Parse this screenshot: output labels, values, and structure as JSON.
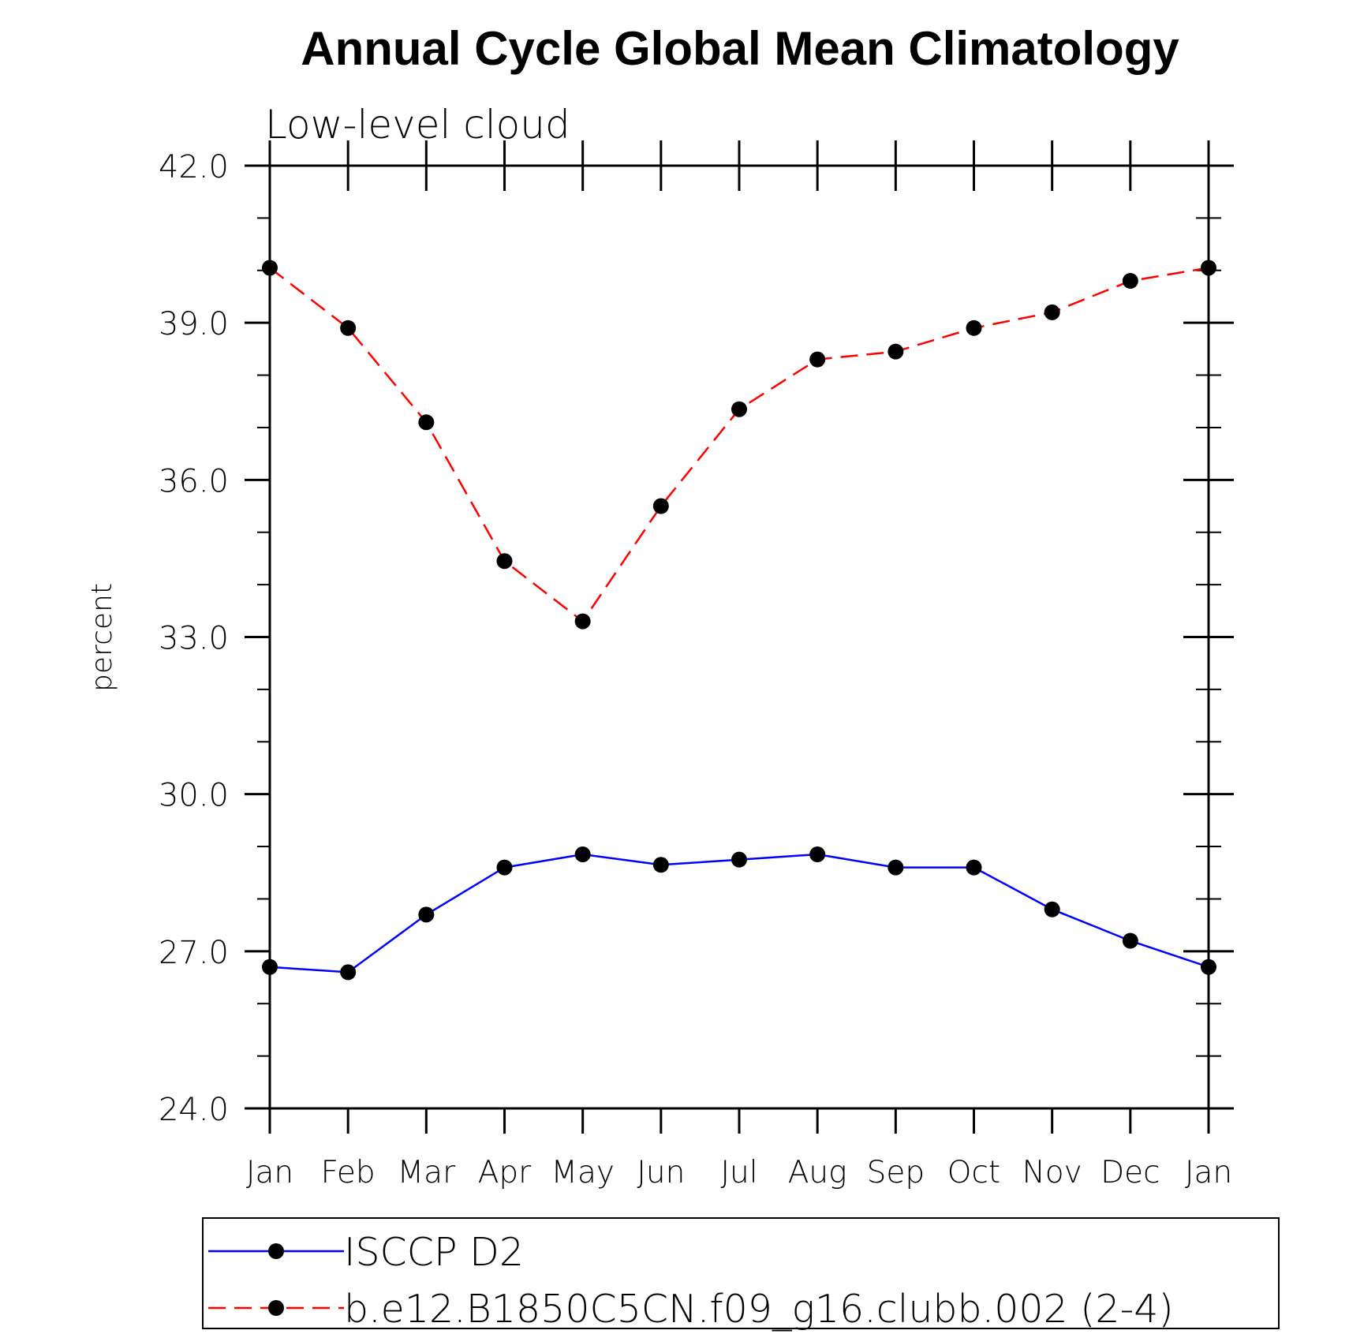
{
  "chart_data": {
    "type": "line",
    "title": "Annual Cycle Global Mean Climatology",
    "subtitle": "Low-level cloud",
    "xlabel": "",
    "ylabel": "percent",
    "categories": [
      "Jan",
      "Feb",
      "Mar",
      "Apr",
      "May",
      "Jun",
      "Jul",
      "Aug",
      "Sep",
      "Oct",
      "Nov",
      "Dec",
      "Jan"
    ],
    "ylim": [
      24.0,
      42.0
    ],
    "yticks": [
      "24.0",
      "27.0",
      "30.0",
      "33.0",
      "36.0",
      "39.0",
      "42.0"
    ],
    "series": [
      {
        "name": "ISCCP D2",
        "color": "#0000ff",
        "dash": "solid",
        "marker": "filled-circle",
        "values": [
          26.7,
          26.6,
          27.7,
          28.6,
          28.85,
          28.65,
          28.75,
          28.85,
          28.6,
          28.6,
          27.8,
          27.2,
          26.7
        ]
      },
      {
        "name": "b.e12.B1850C5CN.f09_g16.clubb.002 (2-4)",
        "color": "#ff0000",
        "dash": "dashed",
        "marker": "filled-circle",
        "values": [
          40.05,
          38.9,
          37.1,
          34.45,
          33.3,
          35.5,
          37.35,
          38.3,
          38.45,
          38.9,
          39.2,
          39.8,
          40.05
        ]
      }
    ],
    "legend": {
      "placement": "bottom"
    }
  }
}
